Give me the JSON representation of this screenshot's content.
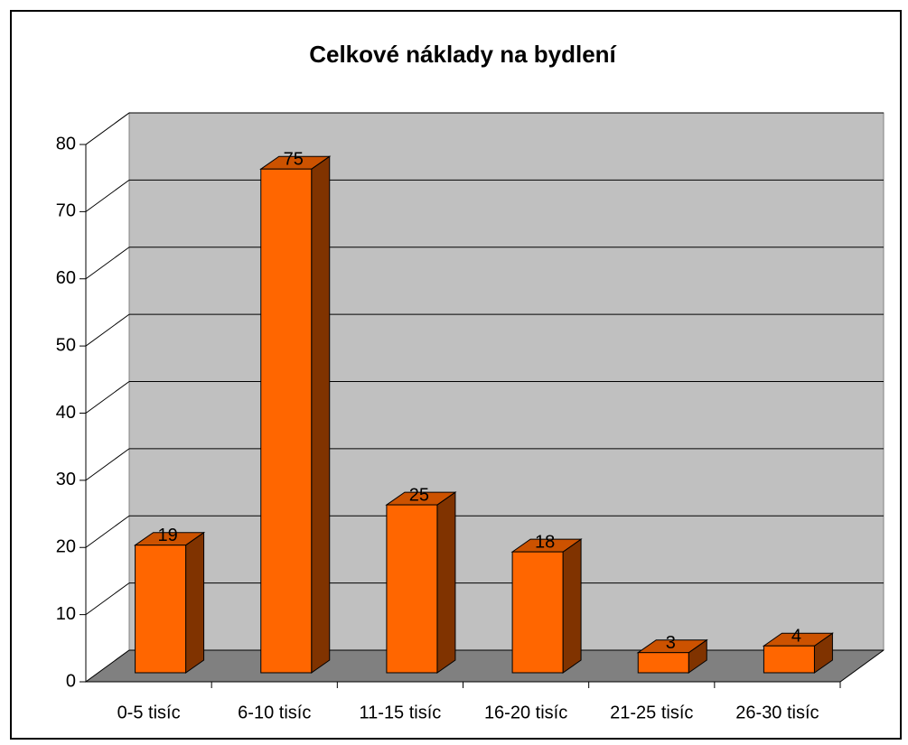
{
  "chart_data": {
    "type": "bar",
    "title": "Celkové náklady na bydlení",
    "categories": [
      "0-5 tisíc",
      "6-10 tisíc",
      "11-15 tisíc",
      "16-20 tisíc",
      "21-25 tisíc",
      "26-30 tisíc"
    ],
    "values": [
      19,
      75,
      25,
      18,
      3,
      4
    ],
    "color": "#ff6600",
    "ylim": [
      0,
      80
    ],
    "yticks": [
      0,
      10,
      20,
      30,
      40,
      50,
      60,
      70,
      80
    ],
    "grid": true
  }
}
